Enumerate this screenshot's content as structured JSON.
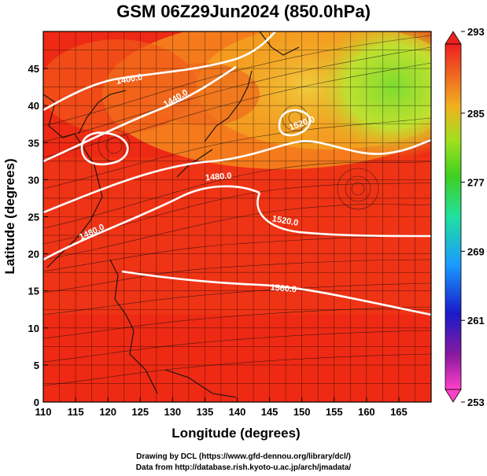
{
  "title": "GSM 06Z29Jun2024 (850.0hPa)",
  "x_axis": {
    "label": "Longitude (degrees)",
    "ticks": [
      "110",
      "115",
      "120",
      "125",
      "130",
      "135",
      "140",
      "145",
      "150",
      "155",
      "160",
      "165"
    ]
  },
  "y_axis": {
    "label": "Latitude  (degrees)",
    "ticks": [
      "0",
      "5",
      "10",
      "15",
      "20",
      "25",
      "30",
      "35",
      "40",
      "45"
    ]
  },
  "colorbar": {
    "ticks": [
      "293",
      "285",
      "277",
      "269",
      "261",
      "253"
    ]
  },
  "contour_labels": [
    "1400.0",
    "1440.0",
    "1480.0",
    "1520.0",
    "1560.0",
    "1520.0",
    "1480.0"
  ],
  "footer": {
    "line1": "Drawing by DCL (https://www.gfd-dennou.org/library/dcl/)",
    "line2": "Data from http://database.rish.kyoto-u.ac.jp/arch/jmadata/"
  },
  "colors": {
    "warm_red": "#ee2a14",
    "orange": "#f78a18",
    "yellow": "#e4e02a",
    "green": "#8ade2e",
    "contour": "#ffffff"
  }
}
